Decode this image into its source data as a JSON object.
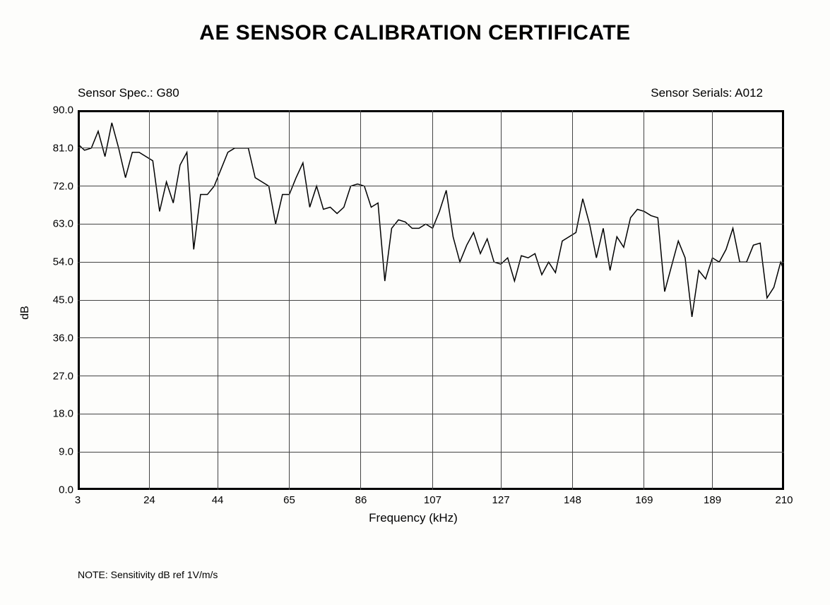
{
  "title": "AE SENSOR CALIBRATION CERTIFICATE",
  "sensor_spec_label": "Sensor Spec.: ",
  "sensor_spec_value": "G80",
  "sensor_serial_label": "Sensor Serials: ",
  "sensor_serial_value": "A012",
  "note": "NOTE:  Sensitivity dB ref 1V/m/s",
  "chart": {
    "type": "line",
    "xlabel": "Frequency (kHz)",
    "ylabel": "dB",
    "background_color": "#fdfdfb",
    "border_color": "#000000",
    "border_width": 3,
    "grid_color": "#444444",
    "line_color": "#000000",
    "line_width": 1.5,
    "font_family": "Arial",
    "title_fontsize": 30,
    "label_fontsize": 17,
    "tick_fontsize": 15,
    "xlim": [
      3,
      210
    ],
    "ylim": [
      0,
      90
    ],
    "xticks": [
      3,
      24,
      44,
      65,
      86,
      107,
      127,
      148,
      169,
      189,
      210
    ],
    "xtick_labels": [
      "3",
      "24",
      "44",
      "65",
      "86",
      "107",
      "127",
      "148",
      "169",
      "189",
      "210"
    ],
    "yticks": [
      0.0,
      9.0,
      18.0,
      27.0,
      36.0,
      45.0,
      54.0,
      63.0,
      72.0,
      81.0,
      90.0
    ],
    "ytick_labels": [
      "0.0",
      "9.0",
      "18.0",
      "27.0",
      "36.0",
      "45.0",
      "54.0",
      "63.0",
      "72.0",
      "81.0",
      "90.0"
    ],
    "series": [
      {
        "x": 3,
        "y": 82
      },
      {
        "x": 5,
        "y": 80.5
      },
      {
        "x": 7,
        "y": 81
      },
      {
        "x": 9,
        "y": 85
      },
      {
        "x": 11,
        "y": 79
      },
      {
        "x": 13,
        "y": 87
      },
      {
        "x": 15,
        "y": 81
      },
      {
        "x": 17,
        "y": 74
      },
      {
        "x": 19,
        "y": 80
      },
      {
        "x": 21,
        "y": 80
      },
      {
        "x": 23,
        "y": 79
      },
      {
        "x": 25,
        "y": 78
      },
      {
        "x": 27,
        "y": 66
      },
      {
        "x": 29,
        "y": 73
      },
      {
        "x": 31,
        "y": 68
      },
      {
        "x": 33,
        "y": 77
      },
      {
        "x": 35,
        "y": 80
      },
      {
        "x": 37,
        "y": 57
      },
      {
        "x": 39,
        "y": 70
      },
      {
        "x": 41,
        "y": 70
      },
      {
        "x": 43,
        "y": 72
      },
      {
        "x": 45,
        "y": 76
      },
      {
        "x": 47,
        "y": 80
      },
      {
        "x": 49,
        "y": 81
      },
      {
        "x": 51,
        "y": 81
      },
      {
        "x": 53,
        "y": 81
      },
      {
        "x": 55,
        "y": 74
      },
      {
        "x": 57,
        "y": 73
      },
      {
        "x": 59,
        "y": 72
      },
      {
        "x": 61,
        "y": 63
      },
      {
        "x": 63,
        "y": 70
      },
      {
        "x": 65,
        "y": 70
      },
      {
        "x": 67,
        "y": 74
      },
      {
        "x": 69,
        "y": 77.5
      },
      {
        "x": 71,
        "y": 67
      },
      {
        "x": 73,
        "y": 72
      },
      {
        "x": 75,
        "y": 66.5
      },
      {
        "x": 77,
        "y": 67
      },
      {
        "x": 79,
        "y": 65.5
      },
      {
        "x": 81,
        "y": 67
      },
      {
        "x": 83,
        "y": 72
      },
      {
        "x": 85,
        "y": 72.5
      },
      {
        "x": 87,
        "y": 72
      },
      {
        "x": 89,
        "y": 67
      },
      {
        "x": 91,
        "y": 68
      },
      {
        "x": 93,
        "y": 49.5
      },
      {
        "x": 95,
        "y": 62
      },
      {
        "x": 97,
        "y": 64
      },
      {
        "x": 99,
        "y": 63.5
      },
      {
        "x": 101,
        "y": 62
      },
      {
        "x": 103,
        "y": 62
      },
      {
        "x": 105,
        "y": 63
      },
      {
        "x": 107,
        "y": 62
      },
      {
        "x": 109,
        "y": 66
      },
      {
        "x": 111,
        "y": 71
      },
      {
        "x": 113,
        "y": 60
      },
      {
        "x": 115,
        "y": 54
      },
      {
        "x": 117,
        "y": 58
      },
      {
        "x": 119,
        "y": 61
      },
      {
        "x": 121,
        "y": 56
      },
      {
        "x": 123,
        "y": 59.5
      },
      {
        "x": 125,
        "y": 54
      },
      {
        "x": 127,
        "y": 53.5
      },
      {
        "x": 129,
        "y": 55
      },
      {
        "x": 131,
        "y": 49.5
      },
      {
        "x": 133,
        "y": 55.5
      },
      {
        "x": 135,
        "y": 55
      },
      {
        "x": 137,
        "y": 56
      },
      {
        "x": 139,
        "y": 51
      },
      {
        "x": 141,
        "y": 54
      },
      {
        "x": 143,
        "y": 51.5
      },
      {
        "x": 145,
        "y": 59
      },
      {
        "x": 147,
        "y": 60
      },
      {
        "x": 149,
        "y": 61
      },
      {
        "x": 151,
        "y": 69
      },
      {
        "x": 153,
        "y": 63
      },
      {
        "x": 155,
        "y": 55
      },
      {
        "x": 157,
        "y": 62
      },
      {
        "x": 159,
        "y": 52
      },
      {
        "x": 161,
        "y": 60
      },
      {
        "x": 163,
        "y": 57.5
      },
      {
        "x": 165,
        "y": 64.5
      },
      {
        "x": 167,
        "y": 66.5
      },
      {
        "x": 169,
        "y": 66
      },
      {
        "x": 171,
        "y": 65
      },
      {
        "x": 173,
        "y": 64.5
      },
      {
        "x": 175,
        "y": 47
      },
      {
        "x": 177,
        "y": 53
      },
      {
        "x": 179,
        "y": 59
      },
      {
        "x": 181,
        "y": 55
      },
      {
        "x": 183,
        "y": 41
      },
      {
        "x": 185,
        "y": 52
      },
      {
        "x": 187,
        "y": 50
      },
      {
        "x": 189,
        "y": 55
      },
      {
        "x": 191,
        "y": 54
      },
      {
        "x": 193,
        "y": 57
      },
      {
        "x": 195,
        "y": 62
      },
      {
        "x": 197,
        "y": 54
      },
      {
        "x": 199,
        "y": 54
      },
      {
        "x": 201,
        "y": 58
      },
      {
        "x": 203,
        "y": 58.5
      },
      {
        "x": 205,
        "y": 45.5
      },
      {
        "x": 207,
        "y": 48
      },
      {
        "x": 209,
        "y": 54
      },
      {
        "x": 210,
        "y": 52
      }
    ]
  }
}
